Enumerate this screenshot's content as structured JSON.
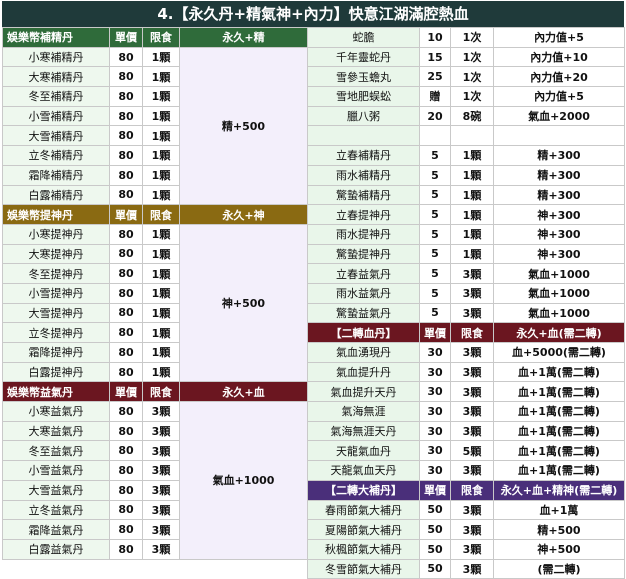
{
  "title": "4.【永久丹+精氣神+內力】快意江湖滿腔熱血",
  "left": {
    "sections": [
      {
        "theme": "green",
        "header": [
          "娛樂幣補精丹",
          "單價",
          "限食",
          "永久+精"
        ],
        "effect": "精+500",
        "rows": [
          {
            "name": "小寒補精丹",
            "price": "80",
            "limit": "1顆"
          },
          {
            "name": "大寒補精丹",
            "price": "80",
            "limit": "1顆"
          },
          {
            "name": "冬至補精丹",
            "price": "80",
            "limit": "1顆"
          },
          {
            "name": "小雪補精丹",
            "price": "80",
            "limit": "1顆"
          },
          {
            "name": "大雪補精丹",
            "price": "80",
            "limit": "1顆"
          },
          {
            "name": "立冬補精丹",
            "price": "80",
            "limit": "1顆"
          },
          {
            "name": "霜降補精丹",
            "price": "80",
            "limit": "1顆"
          },
          {
            "name": "白露補精丹",
            "price": "80",
            "limit": "1顆"
          }
        ]
      },
      {
        "theme": "olive",
        "header": [
          "娛樂幣提神丹",
          "單價",
          "限食",
          "永久+神"
        ],
        "effect": "神+500",
        "rows": [
          {
            "name": "小寒提神丹",
            "price": "80",
            "limit": "1顆"
          },
          {
            "name": "大寒提神丹",
            "price": "80",
            "limit": "1顆"
          },
          {
            "name": "冬至提神丹",
            "price": "80",
            "limit": "1顆"
          },
          {
            "name": "小雪提神丹",
            "price": "80",
            "limit": "1顆"
          },
          {
            "name": "大雪提神丹",
            "price": "80",
            "limit": "1顆"
          },
          {
            "name": "立冬提神丹",
            "price": "80",
            "limit": "1顆"
          },
          {
            "name": "霜降提神丹",
            "price": "80",
            "limit": "1顆"
          },
          {
            "name": "白露提神丹",
            "price": "80",
            "limit": "1顆"
          }
        ]
      },
      {
        "theme": "red",
        "header": [
          "娛樂幣益氣丹",
          "單價",
          "限食",
          "永久+血"
        ],
        "effect": "氣血+1000",
        "rows": [
          {
            "name": "小寒益氣丹",
            "price": "80",
            "limit": "3顆"
          },
          {
            "name": "大寒益氣丹",
            "price": "80",
            "limit": "3顆"
          },
          {
            "name": "冬至益氣丹",
            "price": "80",
            "limit": "3顆"
          },
          {
            "name": "小雪益氣丹",
            "price": "80",
            "limit": "3顆"
          },
          {
            "name": "大雪益氣丹",
            "price": "80",
            "limit": "3顆"
          },
          {
            "name": "立冬益氣丹",
            "price": "80",
            "limit": "3顆"
          },
          {
            "name": "霜降益氣丹",
            "price": "80",
            "limit": "3顆"
          },
          {
            "name": "白露益氣丹",
            "price": "80",
            "limit": "3顆"
          }
        ]
      }
    ]
  },
  "right": {
    "rows": [
      {
        "type": "row",
        "name": "蛇膽",
        "price": "10",
        "limit": "1次",
        "effect": "內力值+5"
      },
      {
        "type": "row",
        "name": "千年靈蛇丹",
        "price": "15",
        "limit": "1次",
        "effect": "內力值+10"
      },
      {
        "type": "row",
        "name": "雪參玉蟾丸",
        "price": "25",
        "limit": "1次",
        "effect": "內力值+20"
      },
      {
        "type": "row",
        "name": "雪地肥蜈蚣",
        "price": "贈",
        "limit": "1次",
        "effect": "內力值+5"
      },
      {
        "type": "row",
        "name": "臘八粥",
        "price": "20",
        "limit": "8碗",
        "effect": "氣血+2000"
      },
      {
        "type": "row",
        "name": "",
        "price": "",
        "limit": "",
        "effect": ""
      },
      {
        "type": "row",
        "name": "立春補精丹",
        "price": "5",
        "limit": "1顆",
        "effect": "精+300"
      },
      {
        "type": "row",
        "name": "雨水補精丹",
        "price": "5",
        "limit": "1顆",
        "effect": "精+300"
      },
      {
        "type": "row",
        "name": "驚蟄補精丹",
        "price": "5",
        "limit": "1顆",
        "effect": "精+300"
      },
      {
        "type": "row",
        "name": "立春提神丹",
        "price": "5",
        "limit": "1顆",
        "effect": "神+300"
      },
      {
        "type": "row",
        "name": "雨水提神丹",
        "price": "5",
        "limit": "1顆",
        "effect": "神+300"
      },
      {
        "type": "row",
        "name": "驚蟄提神丹",
        "price": "5",
        "limit": "1顆",
        "effect": "神+300"
      },
      {
        "type": "row",
        "name": "立春益氣丹",
        "price": "5",
        "limit": "3顆",
        "effect": "氣血+1000"
      },
      {
        "type": "row",
        "name": "雨水益氣丹",
        "price": "5",
        "limit": "3顆",
        "effect": "氣血+1000"
      },
      {
        "type": "row",
        "name": "驚蟄益氣丹",
        "price": "5",
        "limit": "3顆",
        "effect": "氣血+1000"
      },
      {
        "type": "header",
        "theme": "red",
        "cells": [
          "【二轉血丹】",
          "單價",
          "限食",
          "永久+血(需二轉)"
        ]
      },
      {
        "type": "row",
        "name": "氣血湧現丹",
        "price": "30",
        "limit": "3顆",
        "effect": "血+5000(需二轉)"
      },
      {
        "type": "row",
        "name": "氣血提升丹",
        "price": "30",
        "limit": "3顆",
        "effect": "血+1萬(需二轉)"
      },
      {
        "type": "row",
        "name": "氣血提升天丹",
        "price": "30",
        "limit": "3顆",
        "effect": "血+1萬(需二轉)"
      },
      {
        "type": "row",
        "name": "氣海無涯",
        "price": "30",
        "limit": "3顆",
        "effect": "血+1萬(需二轉)"
      },
      {
        "type": "row",
        "name": "氣海無涯天丹",
        "price": "30",
        "limit": "3顆",
        "effect": "血+1萬(需二轉)"
      },
      {
        "type": "row",
        "name": "天龍氣血丹",
        "price": "30",
        "limit": "5顆",
        "effect": "血+1萬(需二轉)"
      },
      {
        "type": "row",
        "name": "天龍氣血天丹",
        "price": "30",
        "limit": "3顆",
        "effect": "血+1萬(需二轉)"
      },
      {
        "type": "header",
        "theme": "violet",
        "cells": [
          "【二轉大補丹】",
          "單價",
          "限食",
          "永久+血+精神(需二轉)"
        ]
      },
      {
        "type": "row",
        "name": "春雨節氣大補丹",
        "price": "50",
        "limit": "3顆",
        "effect": "血+1萬"
      },
      {
        "type": "row",
        "name": "夏陽節氣大補丹",
        "price": "50",
        "limit": "3顆",
        "effect": "精+500"
      },
      {
        "type": "row",
        "name": "秋楓節氣大補丹",
        "price": "50",
        "limit": "3顆",
        "effect": "神+500"
      },
      {
        "type": "row",
        "name": "冬雪節氣大補丹",
        "price": "50",
        "limit": "3顆",
        "effect": "(需二轉)"
      }
    ]
  }
}
